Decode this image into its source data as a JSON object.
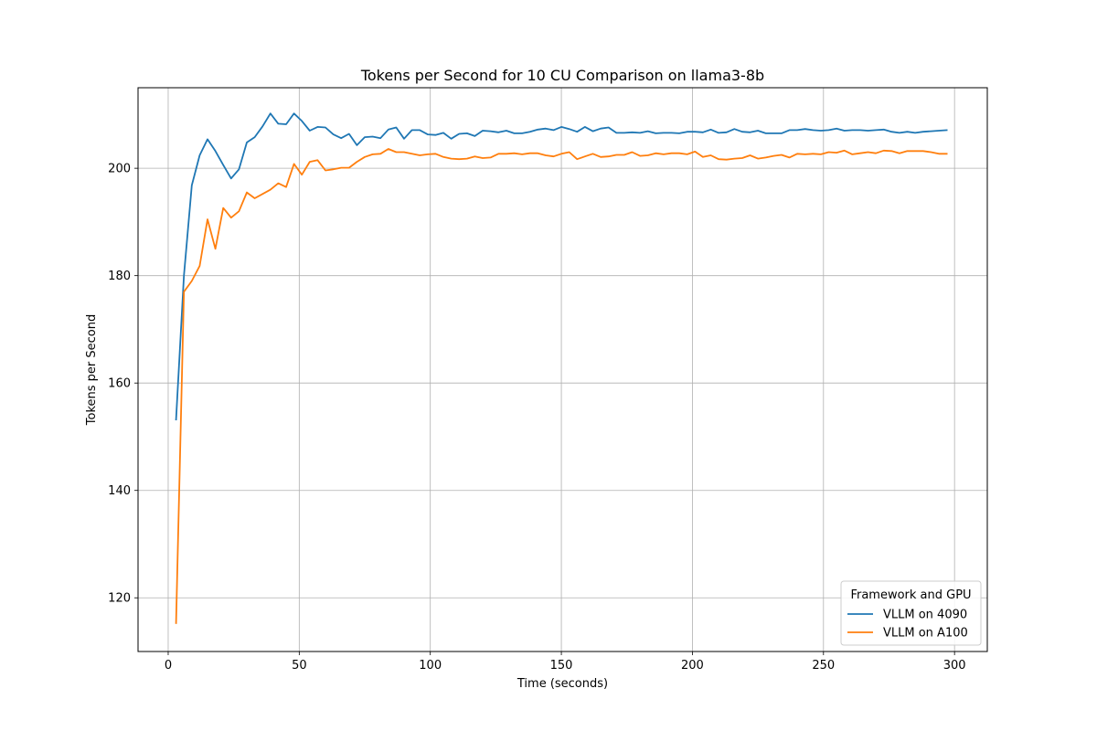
{
  "chart_data": {
    "type": "line",
    "title": "Tokens per Second for 10 CU Comparison on llama3-8b",
    "xlabel": "Time (seconds)",
    "ylabel": "Tokens per Second",
    "xlim": [
      -11.5,
      312.5
    ],
    "ylim": [
      110,
      215
    ],
    "xticks": [
      0,
      50,
      100,
      150,
      200,
      250,
      300
    ],
    "yticks": [
      120,
      140,
      160,
      180,
      200
    ],
    "grid": true,
    "legend": {
      "title": "Framework and GPU",
      "placement": "lower-right"
    },
    "x": [
      3,
      6,
      9,
      12,
      15,
      18,
      21,
      24,
      27,
      30,
      33,
      36,
      39,
      42,
      45,
      48,
      51,
      54,
      57,
      60,
      63,
      66,
      69,
      72,
      75,
      78,
      81,
      84,
      87,
      90,
      93,
      96,
      99,
      102,
      105,
      108,
      111,
      114,
      117,
      120,
      123,
      126,
      129,
      132,
      135,
      138,
      141,
      144,
      147,
      150,
      153,
      156,
      159,
      162,
      165,
      168,
      171,
      174,
      177,
      180,
      183,
      186,
      189,
      192,
      195,
      198,
      201,
      204,
      207,
      210,
      213,
      216,
      219,
      222,
      225,
      228,
      231,
      234,
      237,
      240,
      243,
      246,
      249,
      252,
      255,
      258,
      261,
      264,
      267,
      270,
      273,
      276,
      279,
      282,
      285,
      288,
      291,
      294,
      297
    ],
    "series": [
      {
        "name": "VLLM on 4090",
        "color": "#1f77b4",
        "values": [
          153.2,
          180.0,
          196.8,
          202.4,
          205.4,
          203.2,
          200.6,
          198.1,
          199.8,
          204.8,
          205.8,
          207.8,
          210.2,
          208.3,
          208.2,
          210.2,
          208.8,
          207.0,
          207.7,
          207.6,
          206.3,
          205.6,
          206.4,
          204.3,
          205.8,
          205.9,
          205.6,
          207.2,
          207.6,
          205.5,
          207.1,
          207.1,
          206.3,
          206.2,
          206.6,
          205.5,
          206.4,
          206.5,
          206.0,
          207.0,
          206.9,
          206.7,
          207.0,
          206.5,
          206.5,
          206.8,
          207.2,
          207.4,
          207.1,
          207.7,
          207.3,
          206.8,
          207.7,
          206.9,
          207.4,
          207.6,
          206.6,
          206.6,
          206.7,
          206.6,
          206.9,
          206.5,
          206.6,
          206.6,
          206.5,
          206.8,
          206.8,
          206.7,
          207.2,
          206.6,
          206.7,
          207.3,
          206.8,
          206.7,
          207.0,
          206.5,
          206.5,
          206.5,
          207.1,
          207.1,
          207.3,
          207.1,
          207.0,
          207.1,
          207.4,
          207.0,
          207.1,
          207.1,
          207.0,
          207.1,
          207.2,
          206.8,
          206.6,
          206.8,
          206.6,
          206.8,
          206.9,
          207.0,
          207.1
        ]
      },
      {
        "name": "VLLM on A100",
        "color": "#ff7f0e",
        "values": [
          115.3,
          177.0,
          179.0,
          181.8,
          190.5,
          185.0,
          192.6,
          190.8,
          192.0,
          195.5,
          194.4,
          195.2,
          196.0,
          197.2,
          196.5,
          200.8,
          198.8,
          201.2,
          201.5,
          199.6,
          199.8,
          200.1,
          200.1,
          201.2,
          202.1,
          202.6,
          202.7,
          203.6,
          203.0,
          203.0,
          202.7,
          202.4,
          202.6,
          202.7,
          202.1,
          201.8,
          201.7,
          201.8,
          202.2,
          201.9,
          202.0,
          202.7,
          202.7,
          202.8,
          202.6,
          202.8,
          202.8,
          202.4,
          202.2,
          202.7,
          203.0,
          201.7,
          202.2,
          202.7,
          202.1,
          202.2,
          202.5,
          202.5,
          203.0,
          202.3,
          202.4,
          202.8,
          202.6,
          202.8,
          202.8,
          202.6,
          203.1,
          202.1,
          202.4,
          201.7,
          201.6,
          201.8,
          201.9,
          202.4,
          201.8,
          202.0,
          202.3,
          202.5,
          202.0,
          202.7,
          202.6,
          202.7,
          202.6,
          203.0,
          202.9,
          203.3,
          202.6,
          202.8,
          203.0,
          202.8,
          203.3,
          203.2,
          202.8,
          203.2,
          203.2,
          203.2,
          203.0,
          202.7,
          202.7
        ]
      }
    ]
  }
}
